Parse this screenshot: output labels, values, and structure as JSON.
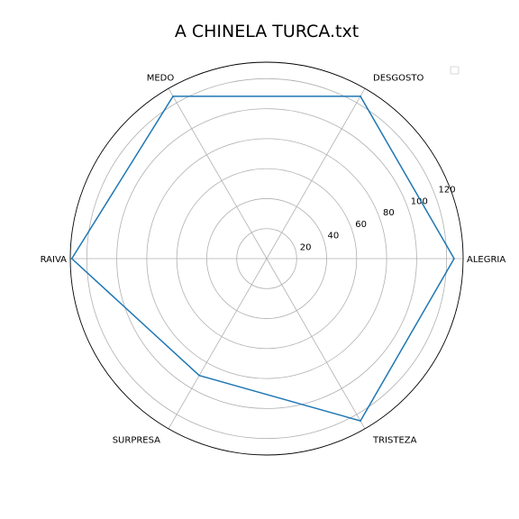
{
  "chart_data": {
    "type": "radar",
    "title": "A CHINELA TURCA.txt",
    "categories": [
      "ALEGRIA",
      "DESGOSTO",
      "MEDO",
      "RAIVA",
      "SURPRESA",
      "TRISTEZA"
    ],
    "series": [
      {
        "values": [
          125,
          125,
          125,
          130,
          90,
          125
        ]
      }
    ],
    "r_ticks": [
      20,
      40,
      60,
      80,
      100,
      120
    ],
    "rlim": [
      0,
      131
    ],
    "grid": true,
    "legend": "top-right",
    "colors": {
      "series": "#1f77b4",
      "grid": "#b0b0b0",
      "frame": "#000000"
    }
  }
}
